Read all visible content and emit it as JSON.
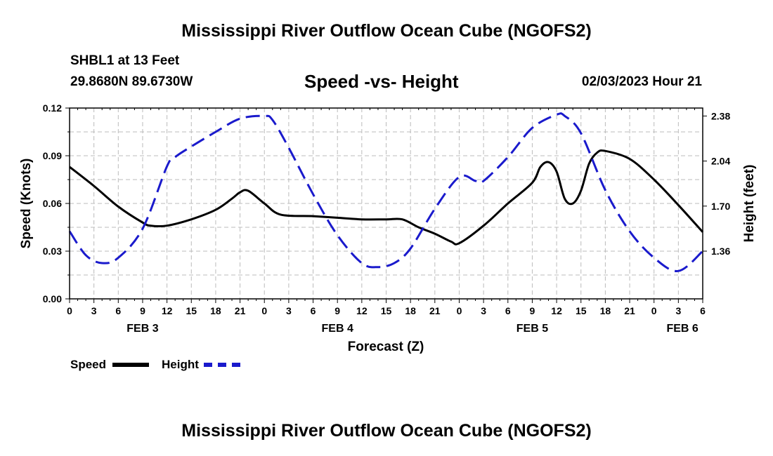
{
  "main_title": "Mississippi River Outflow Ocean Cube (NGOFS2)",
  "station": "SHBL1 at 13 Feet",
  "coords": "29.8680N  89.6730W",
  "subtitle": "Speed -vs- Height",
  "datetime": "02/03/2023 Hour 21",
  "bottom_title": "Mississippi River Outflow Ocean Cube (NGOFS2)",
  "legend": [
    {
      "label": "Speed",
      "color": "#000000",
      "style": "solid"
    },
    {
      "label": "Height",
      "color": "#1a1acc",
      "style": "dashed"
    }
  ],
  "chart_data": {
    "type": "line",
    "xlabel": "Forecast (Z)",
    "ylabel_left": "Speed (Knots)",
    "ylabel_right": "Height (feet)",
    "xlim": [
      0,
      78
    ],
    "ylim_left": [
      0,
      0.12
    ],
    "ylim_right": [
      1.0,
      2.44
    ],
    "grid": true,
    "x_ticks": [
      0,
      3,
      6,
      9,
      12,
      15,
      18,
      21,
      24,
      27,
      30,
      33,
      36,
      39,
      42,
      45,
      48,
      51,
      54,
      57,
      60,
      63,
      66,
      69,
      72,
      75,
      78
    ],
    "x_tick_labels": [
      "0",
      "3",
      "6",
      "9",
      "12",
      "15",
      "18",
      "21",
      "0",
      "3",
      "6",
      "9",
      "12",
      "15",
      "18",
      "21",
      "0",
      "3",
      "6",
      "9",
      "12",
      "15",
      "18",
      "21",
      "0",
      "3",
      "6"
    ],
    "day_labels": [
      {
        "x": 9,
        "label": "FEB 3"
      },
      {
        "x": 33,
        "label": "FEB 4"
      },
      {
        "x": 57,
        "label": "FEB 5"
      },
      {
        "x": 75.5,
        "label": "FEB 6"
      }
    ],
    "y_left_ticks": [
      0.0,
      0.03,
      0.06,
      0.09,
      0.12
    ],
    "y_left_tick_labels": [
      "0.00",
      "0.03",
      "0.06",
      "0.09",
      "0.12"
    ],
    "y_right_ticks": [
      1.36,
      1.7,
      2.04,
      2.38
    ],
    "y_right_tick_labels": [
      "1.36",
      "1.70",
      "2.04",
      "2.38"
    ],
    "series": [
      {
        "name": "Speed",
        "axis": "left",
        "color": "#000000",
        "dash": "solid",
        "x": [
          0,
          3,
          6,
          9,
          10,
          12,
          15,
          18,
          20,
          21,
          22,
          24,
          26,
          30,
          33,
          36,
          39,
          41,
          43,
          45,
          47,
          48,
          51,
          54,
          57,
          58,
          59,
          60,
          61,
          62,
          63,
          64,
          65,
          66,
          69,
          72,
          75,
          78
        ],
        "y": [
          0.083,
          0.071,
          0.058,
          0.048,
          0.046,
          0.046,
          0.05,
          0.056,
          0.063,
          0.067,
          0.068,
          0.06,
          0.053,
          0.052,
          0.051,
          0.05,
          0.05,
          0.05,
          0.045,
          0.041,
          0.036,
          0.035,
          0.046,
          0.06,
          0.073,
          0.083,
          0.086,
          0.08,
          0.063,
          0.06,
          0.068,
          0.085,
          0.092,
          0.093,
          0.088,
          0.075,
          0.059,
          0.042
        ]
      },
      {
        "name": "Height",
        "axis": "right",
        "color": "#1a1acc",
        "dash": "dashed",
        "x": [
          0,
          2,
          4,
          6,
          9,
          12,
          13,
          15,
          18,
          21,
          24,
          25,
          27,
          30,
          33,
          36,
          38,
          40,
          42,
          45,
          48,
          50,
          51,
          54,
          57,
          60,
          61,
          63,
          66,
          69,
          72,
          75,
          78
        ],
        "y": [
          1.51,
          1.33,
          1.27,
          1.31,
          1.53,
          2.0,
          2.07,
          2.15,
          2.26,
          2.36,
          2.38,
          2.35,
          2.14,
          1.79,
          1.48,
          1.27,
          1.24,
          1.27,
          1.38,
          1.68,
          1.92,
          1.89,
          1.89,
          2.07,
          2.29,
          2.39,
          2.38,
          2.25,
          1.82,
          1.51,
          1.31,
          1.21,
          1.36
        ]
      }
    ]
  }
}
